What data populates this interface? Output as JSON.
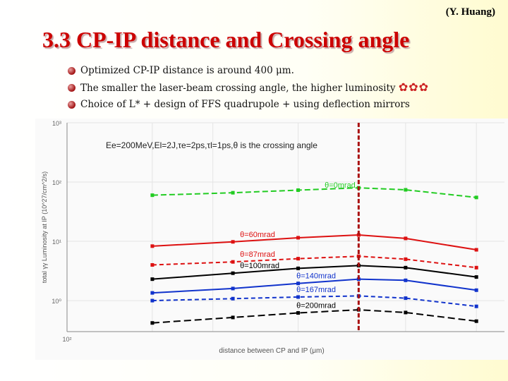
{
  "header": {
    "author": "(Y. Huang)",
    "title": "3.3 CP-IP distance  and Crossing angle"
  },
  "bullets": [
    "Optimized CP-IP distance is around 400 μm.",
    "The smaller the laser-beam crossing angle, the higher luminosity",
    "Choice of L* + design of FFS quadrupole + using deflection mirrors"
  ],
  "bullet_flowers": "✿✿✿",
  "colors": {
    "title": "#cc0000",
    "green": "#22cc22",
    "red": "#dd1111",
    "black": "#000000",
    "blue": "#1133cc",
    "marker": "#aa1111"
  },
  "chart_data": {
    "type": "line",
    "annotation": "Ee=200MeV,El=2J,τe=2ps,τl=1ps,θ is the crossing angle",
    "xlabel": "distance between CP and IP (μm)",
    "ylabel": "total γγ Luminosity at IP (10^27/cm^2/s)",
    "x_tick_labels": [
      "10²"
    ],
    "y_tick_labels": [
      "10³",
      "10²",
      "10¹",
      "10⁰"
    ],
    "x": [
      150,
      220,
      300,
      400,
      500,
      700
    ],
    "series": [
      {
        "name": "θ=0mrad",
        "color": "green",
        "dash": "8,4",
        "values": [
          60,
          66,
          73,
          80,
          74,
          55
        ]
      },
      {
        "name": "θ=60mrad",
        "color": "red",
        "dash": "",
        "values": [
          8.3,
          9.8,
          11.5,
          12.8,
          11.2,
          7.2
        ]
      },
      {
        "name": "θ=87mrad",
        "color": "red",
        "dash": "6,4",
        "values": [
          4.0,
          4.5,
          5.1,
          5.6,
          5.0,
          3.6
        ]
      },
      {
        "name": "θ=100mrad",
        "color": "black",
        "dash": "",
        "values": [
          2.3,
          2.9,
          3.5,
          3.9,
          3.6,
          2.5
        ]
      },
      {
        "name": "θ=140mrad",
        "color": "blue",
        "dash": "",
        "values": [
          1.35,
          1.6,
          1.95,
          2.3,
          2.2,
          1.5
        ]
      },
      {
        "name": "θ=167mrad",
        "color": "blue",
        "dash": "6,4",
        "values": [
          1.0,
          1.08,
          1.15,
          1.2,
          1.1,
          0.8
        ]
      },
      {
        "name": "θ=200mrad",
        "color": "black",
        "dash": "10,5",
        "values": [
          0.42,
          0.52,
          0.62,
          0.7,
          0.63,
          0.45
        ]
      }
    ],
    "optimum_marker_x": 400,
    "xlim": [
      100,
      800
    ],
    "ylim": [
      0.3,
      1000
    ],
    "yscale": "log",
    "xscale": "log"
  }
}
